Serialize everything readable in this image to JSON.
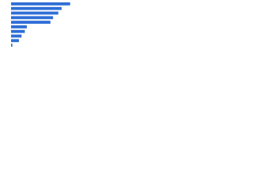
{
  "chart_data": {
    "type": "bar",
    "orientation": "horizontal",
    "categories": [
      null,
      null,
      null,
      null,
      null,
      null,
      null,
      null,
      null,
      null
    ],
    "values": [
      90,
      77,
      72,
      64,
      60,
      24,
      21,
      16,
      12,
      2
    ],
    "color": "#2f6fd6",
    "xlim": [
      0,
      100
    ]
  }
}
